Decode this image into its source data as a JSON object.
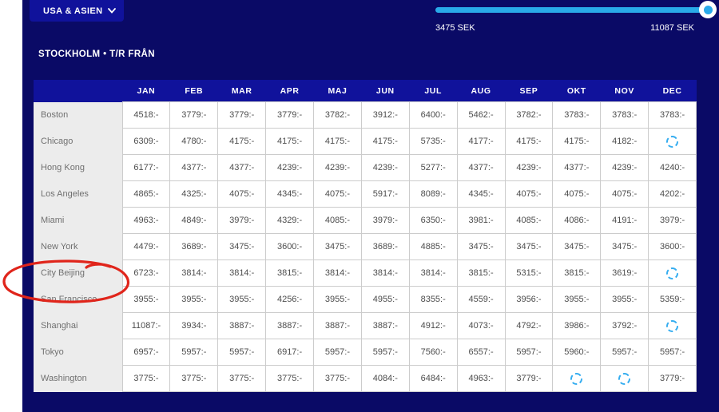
{
  "filters": {
    "region_dropdown": {
      "label": "USA & ASIEN",
      "icon": "chevron-down-icon"
    },
    "price_slider": {
      "min_label": "3475 SEK",
      "max_label": "11087 SEK",
      "track_color": "#29aae9",
      "state": "full-range-selected"
    }
  },
  "route_header": {
    "title": "STOCKHOLM • T/R FRÅN"
  },
  "price_table": {
    "months": [
      "JAN",
      "FEB",
      "MAR",
      "APR",
      "MAJ",
      "JUN",
      "JUL",
      "AUG",
      "SEP",
      "OKT",
      "NOV",
      "DEC"
    ],
    "price_suffix": ":-",
    "loading_cell_icon": "loading-spinner-icon",
    "rows": [
      {
        "city": "Boston",
        "prices": [
          "4518:-",
          "3779:-",
          "3779:-",
          "3779:-",
          "3782:-",
          "3912:-",
          "6400:-",
          "5462:-",
          "3782:-",
          "3783:-",
          "3783:-",
          "3783:-"
        ]
      },
      {
        "city": "Chicago",
        "prices": [
          "6309:-",
          "4780:-",
          "4175:-",
          "4175:-",
          "4175:-",
          "4175:-",
          "5735:-",
          "4177:-",
          "4175:-",
          "4175:-",
          "4182:-",
          null
        ]
      },
      {
        "city": "Hong Kong",
        "prices": [
          "6177:-",
          "4377:-",
          "4377:-",
          "4239:-",
          "4239:-",
          "4239:-",
          "5277:-",
          "4377:-",
          "4239:-",
          "4377:-",
          "4239:-",
          "4240:-"
        ]
      },
      {
        "city": "Los Angeles",
        "prices": [
          "4865:-",
          "4325:-",
          "4075:-",
          "4345:-",
          "4075:-",
          "5917:-",
          "8089:-",
          "4345:-",
          "4075:-",
          "4075:-",
          "4075:-",
          "4202:-"
        ]
      },
      {
        "city": "Miami",
        "prices": [
          "4963:-",
          "4849:-",
          "3979:-",
          "4329:-",
          "4085:-",
          "3979:-",
          "6350:-",
          "3981:-",
          "4085:-",
          "4086:-",
          "4191:-",
          "3979:-"
        ]
      },
      {
        "city": "New York",
        "prices": [
          "4479:-",
          "3689:-",
          "3475:-",
          "3600:-",
          "3475:-",
          "3689:-",
          "4885:-",
          "3475:-",
          "3475:-",
          "3475:-",
          "3475:-",
          "3600:-"
        ]
      },
      {
        "city": "City Beijing",
        "prices": [
          "6723:-",
          "3814:-",
          "3814:-",
          "3815:-",
          "3814:-",
          "3814:-",
          "3814:-",
          "3815:-",
          "5315:-",
          "3815:-",
          "3619:-",
          null
        ]
      },
      {
        "city": "San Francisco",
        "prices": [
          "3955:-",
          "3955:-",
          "3955:-",
          "4256:-",
          "3955:-",
          "4955:-",
          "8355:-",
          "4559:-",
          "3956:-",
          "3955:-",
          "3955:-",
          "5359:-"
        ]
      },
      {
        "city": "Shanghai",
        "prices": [
          "11087:-",
          "3934:-",
          "3887:-",
          "3887:-",
          "3887:-",
          "3887:-",
          "4912:-",
          "4073:-",
          "4792:-",
          "3986:-",
          "3792:-",
          null
        ]
      },
      {
        "city": "Tokyo",
        "prices": [
          "6957:-",
          "5957:-",
          "5957:-",
          "6917:-",
          "5957:-",
          "5957:-",
          "7560:-",
          "6557:-",
          "5957:-",
          "5960:-",
          "5957:-",
          "5957:-"
        ]
      },
      {
        "city": "Washington",
        "prices": [
          "3775:-",
          "3775:-",
          "3775:-",
          "3775:-",
          "3775:-",
          "4084:-",
          "6484:-",
          "4963:-",
          "3779:-",
          null,
          null,
          "3779:-"
        ]
      }
    ]
  },
  "annotation": {
    "type": "hand-drawn-ellipse",
    "color": "#e0251b",
    "target": "City Beijing"
  },
  "colors": {
    "panel_background": "#0a0a66",
    "accent_blue": "#10129b",
    "slider_blue": "#29aae9",
    "spinner_blue": "#35adf0",
    "cell_border": "#cccccc",
    "price_text": "#4d4d4d",
    "city_column_bg": "#ececec"
  }
}
